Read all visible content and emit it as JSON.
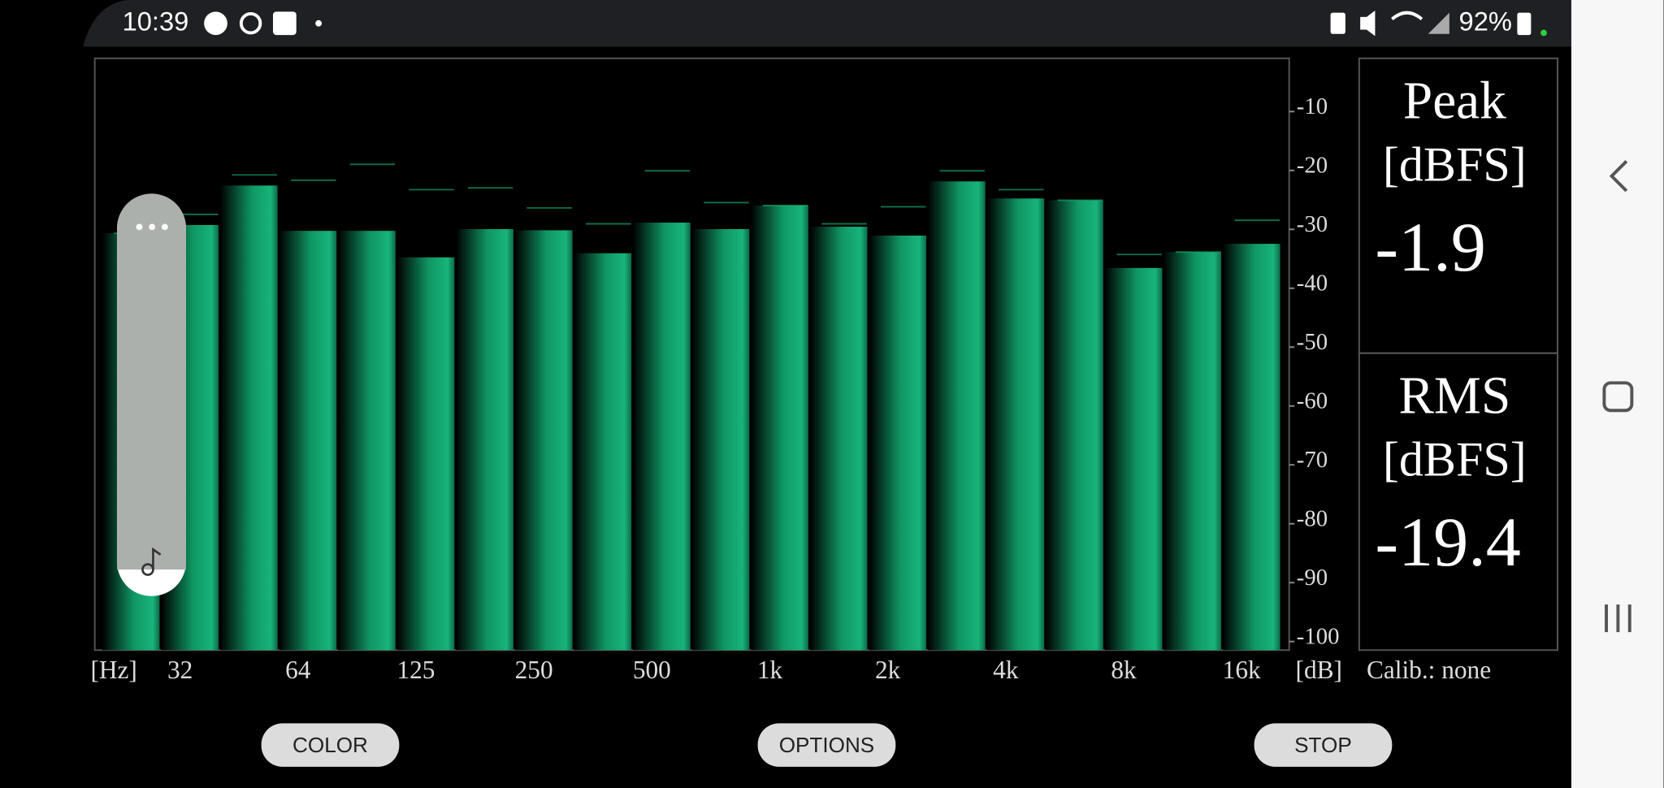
{
  "status_bar": {
    "time": "10:39",
    "battery": "92%"
  },
  "chart_data": {
    "type": "bar",
    "categories": [
      null,
      "32",
      null,
      "64",
      null,
      "125",
      null,
      "250",
      null,
      "500",
      null,
      "1k",
      null,
      "2k",
      null,
      "4k",
      null,
      "8k",
      null,
      "16k"
    ],
    "values": [
      -31.2,
      -29.8,
      -23.1,
      -30.8,
      -30.8,
      -35.3,
      -30.5,
      -30.7,
      -34.6,
      -29.4,
      -30.5,
      -26.5,
      -30.1,
      -31.6,
      -22.4,
      -25.3,
      -25.6,
      -37.1,
      -34.4,
      -33.0
    ],
    "peaks": [
      -31.2,
      -28.0,
      -21.3,
      -22.2,
      -19.5,
      -23.8,
      -23.5,
      -26.9,
      -29.6,
      -20.6,
      -26.0,
      -26.5,
      -29.6,
      -26.7,
      -20.6,
      -23.8,
      -25.6,
      -34.8,
      -34.4,
      -29.0
    ],
    "ylim": [
      -102,
      -1.5
    ],
    "yticks": [
      -10,
      -20,
      -30,
      -40,
      -50,
      -60,
      -70,
      -80,
      -90,
      -100
    ],
    "x_unit": "[Hz]",
    "y_unit": "[dB]",
    "color": "#17b37a"
  },
  "calibration": "Calib.: none",
  "peak_panel": {
    "title": "Peak",
    "unit": "[dBFS]",
    "value": "-1.9"
  },
  "rms_panel": {
    "title": "RMS",
    "unit": "[dBFS]",
    "value": "-19.4"
  },
  "buttons": [
    "COLOR",
    "OPTIONS",
    "STOP"
  ]
}
